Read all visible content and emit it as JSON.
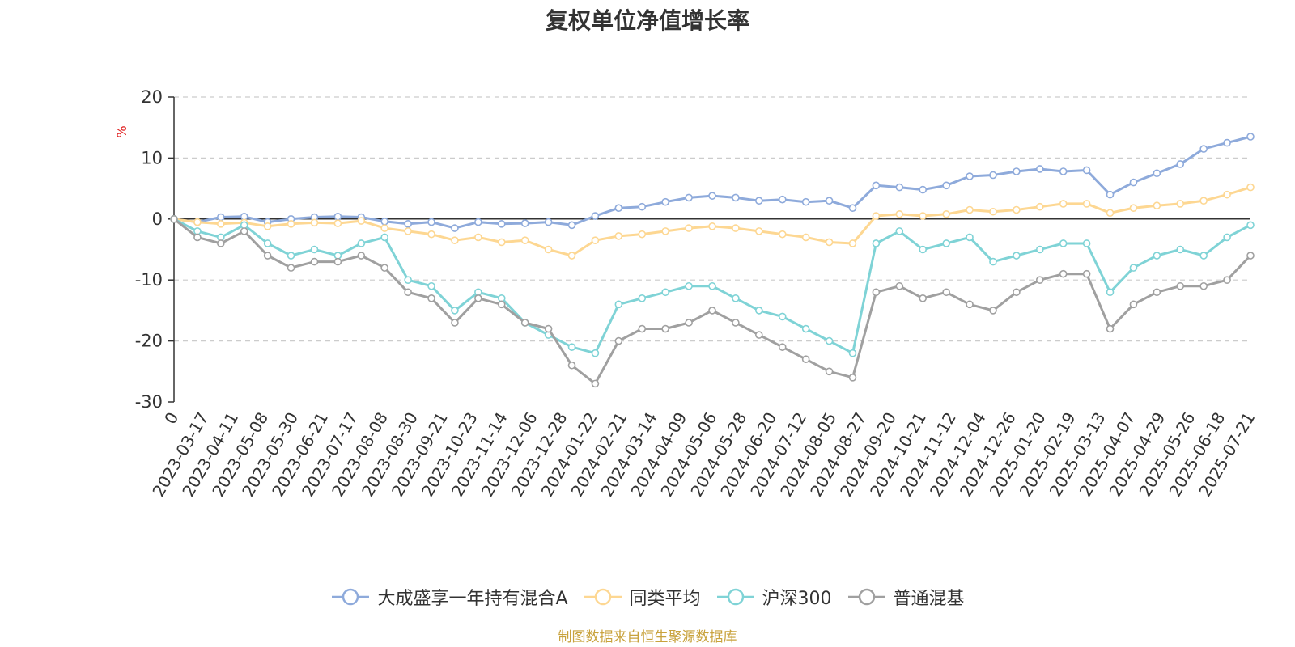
{
  "chart_data": {
    "type": "line",
    "title": "复权单位净值增长率",
    "ylabel": "%",
    "ylim": [
      -30,
      20
    ],
    "yticks": [
      -30,
      -20,
      -10,
      0,
      10,
      20
    ],
    "grid": true,
    "legend_position": "bottom",
    "source": "制图数据来自恒生聚源数据库",
    "x_tick_labels": [
      "0",
      "2023-03-17",
      "2023-04-11",
      "2023-05-08",
      "2023-05-30",
      "2023-06-21",
      "2023-07-17",
      "2023-08-08",
      "2023-08-30",
      "2023-09-21",
      "2023-10-23",
      "2023-11-14",
      "2023-12-06",
      "2023-12-28",
      "2024-01-22",
      "2024-02-21",
      "2024-03-14",
      "2024-04-09",
      "2024-05-06",
      "2024-05-28",
      "2024-06-20",
      "2024-07-12",
      "2024-08-05",
      "2024-08-27",
      "2024-09-20",
      "2024-10-21",
      "2024-11-12",
      "2024-12-04",
      "2024-12-26",
      "2025-01-20",
      "2025-02-19",
      "2025-03-13",
      "2025-04-07",
      "2025-04-29",
      "2025-05-26",
      "2025-06-18",
      "2025-07-21"
    ],
    "series": [
      {
        "name": "大成盛享一年持有混合A",
        "color": "#8eaadb",
        "values": [
          0,
          -0.5,
          0.3,
          0.4,
          -0.5,
          0,
          0.3,
          0.4,
          0.3,
          -0.4,
          -0.8,
          -0.5,
          -1.5,
          -0.5,
          -0.8,
          -0.7,
          -0.5,
          -1.0,
          0.5,
          1.8,
          2.0,
          2.8,
          3.5,
          3.8,
          3.5,
          3.0,
          3.2,
          2.8,
          3.0,
          1.8,
          5.5,
          5.2,
          4.8,
          5.5,
          7.0,
          7.2,
          7.8,
          8.2,
          7.8,
          8.0,
          4.0,
          6.0,
          7.5,
          9.0,
          11.5,
          12.5,
          13.5
        ]
      },
      {
        "name": "同类平均",
        "color": "#fdd792",
        "values": [
          0,
          -0.5,
          -0.8,
          -0.6,
          -1.2,
          -0.8,
          -0.6,
          -0.7,
          -0.3,
          -1.5,
          -2.0,
          -2.5,
          -3.5,
          -3.0,
          -3.8,
          -3.5,
          -5.0,
          -6.0,
          -3.5,
          -2.8,
          -2.5,
          -2.0,
          -1.5,
          -1.2,
          -1.5,
          -2.0,
          -2.5,
          -3.0,
          -3.8,
          -4.0,
          0.5,
          0.8,
          0.5,
          0.8,
          1.5,
          1.2,
          1.5,
          2.0,
          2.5,
          2.5,
          1.0,
          1.8,
          2.2,
          2.5,
          3.0,
          4.0,
          5.2
        ]
      },
      {
        "name": "沪深300",
        "color": "#7fd3d6",
        "values": [
          0,
          -2,
          -3,
          -1,
          -4,
          -6,
          -5,
          -6,
          -4,
          -3,
          -10,
          -11,
          -15,
          -12,
          -13,
          -17,
          -19,
          -21,
          -22,
          -14,
          -13,
          -12,
          -11,
          -11,
          -13,
          -15,
          -16,
          -18,
          -20,
          -22,
          -4,
          -2,
          -5,
          -4,
          -3,
          -7,
          -6,
          -5,
          -4,
          -4,
          -12,
          -8,
          -6,
          -5,
          -6,
          -3,
          -1
        ]
      },
      {
        "name": "普通混基",
        "color": "#a0a0a0",
        "values": [
          0,
          -3,
          -4,
          -2,
          -6,
          -8,
          -7,
          -7,
          -6,
          -8,
          -12,
          -13,
          -17,
          -13,
          -14,
          -17,
          -18,
          -24,
          -27,
          -20,
          -18,
          -18,
          -17,
          -15,
          -17,
          -19,
          -21,
          -23,
          -25,
          -26,
          -12,
          -11,
          -13,
          -12,
          -14,
          -15,
          -12,
          -10,
          -9,
          -9,
          -18,
          -14,
          -12,
          -11,
          -11,
          -10,
          -6
        ]
      }
    ]
  }
}
